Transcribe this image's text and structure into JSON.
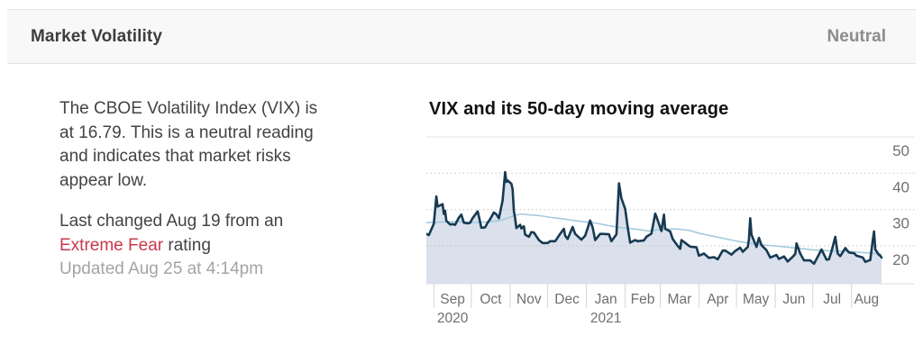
{
  "header": {
    "title": "Market Volatility",
    "status": "Neutral"
  },
  "summary": {
    "paragraph": "The CBOE Volatility Index (VIX) is\nat 16.79. This is a neutral reading\nand indicates that market risks\nappear low.",
    "last_changed_line1": "Last changed Aug 19 from an",
    "rating": "Extreme Fear",
    "rating_suffix": " rating",
    "updated": "Updated Aug 25 at 4:14pm",
    "vix_value": "16.79",
    "rating_color": "#ca384b"
  },
  "chart_data": {
    "type": "line",
    "title": "VIX and its 50-day moving average",
    "x_type": "date",
    "x_range": [
      "2020-08-26",
      "2021-08-25"
    ],
    "ylim": [
      10,
      52
    ],
    "yticks": [
      50,
      40,
      30,
      20
    ],
    "grid": "dotted-horizontal",
    "y_labels_position": "right",
    "x_ticks": [
      "2020-09-01",
      "2020-10-01",
      "2020-11-01",
      "2020-12-01",
      "2021-01-01",
      "2021-02-01",
      "2021-03-01",
      "2021-04-01",
      "2021-05-01",
      "2021-06-01",
      "2021-07-01",
      "2021-08-01"
    ],
    "x_tick_labels": [
      "Sep",
      "Oct",
      "Nov",
      "Dec",
      "Jan",
      "Feb",
      "Mar",
      "Apr",
      "May",
      "Jun",
      "Jul",
      "Aug"
    ],
    "year_labels": [
      {
        "text": "2020",
        "month_index": 0
      },
      {
        "text": "2021",
        "month_index": 4
      }
    ],
    "series": [
      {
        "name": "VIX",
        "style": "area-line",
        "color": "#173a52",
        "fill": "#dae1ec",
        "points": [
          [
            "2020-08-26",
            23.3
          ],
          [
            "2020-08-28",
            23.0
          ],
          [
            "2020-09-01",
            26.1
          ],
          [
            "2020-09-03",
            33.6
          ],
          [
            "2020-09-04",
            30.8
          ],
          [
            "2020-09-08",
            31.5
          ],
          [
            "2020-09-09",
            28.8
          ],
          [
            "2020-09-10",
            29.7
          ],
          [
            "2020-09-11",
            26.9
          ],
          [
            "2020-09-14",
            25.9
          ],
          [
            "2020-09-16",
            26.0
          ],
          [
            "2020-09-18",
            25.8
          ],
          [
            "2020-09-21",
            27.8
          ],
          [
            "2020-09-23",
            28.6
          ],
          [
            "2020-09-25",
            26.4
          ],
          [
            "2020-09-28",
            26.2
          ],
          [
            "2020-09-30",
            26.4
          ],
          [
            "2020-10-02",
            27.6
          ],
          [
            "2020-10-06",
            29.5
          ],
          [
            "2020-10-07",
            28.1
          ],
          [
            "2020-10-09",
            25.0
          ],
          [
            "2020-10-12",
            25.1
          ],
          [
            "2020-10-14",
            26.4
          ],
          [
            "2020-10-16",
            27.4
          ],
          [
            "2020-10-19",
            29.2
          ],
          [
            "2020-10-21",
            28.7
          ],
          [
            "2020-10-23",
            27.6
          ],
          [
            "2020-10-26",
            32.5
          ],
          [
            "2020-10-28",
            40.3
          ],
          [
            "2020-10-29",
            37.6
          ],
          [
            "2020-10-30",
            38.0
          ],
          [
            "2020-11-02",
            37.1
          ],
          [
            "2020-11-03",
            35.6
          ],
          [
            "2020-11-04",
            29.6
          ],
          [
            "2020-11-05",
            27.6
          ],
          [
            "2020-11-06",
            24.9
          ],
          [
            "2020-11-09",
            25.8
          ],
          [
            "2020-11-10",
            24.8
          ],
          [
            "2020-11-12",
            25.4
          ],
          [
            "2020-11-13",
            23.1
          ],
          [
            "2020-11-16",
            22.5
          ],
          [
            "2020-11-18",
            23.8
          ],
          [
            "2020-11-20",
            23.7
          ],
          [
            "2020-11-24",
            21.6
          ],
          [
            "2020-11-27",
            20.8
          ],
          [
            "2020-12-01",
            20.8
          ],
          [
            "2020-12-03",
            21.3
          ],
          [
            "2020-12-07",
            21.3
          ],
          [
            "2020-12-09",
            22.3
          ],
          [
            "2020-12-11",
            23.3
          ],
          [
            "2020-12-14",
            24.7
          ],
          [
            "2020-12-15",
            22.8
          ],
          [
            "2020-12-17",
            21.9
          ],
          [
            "2020-12-21",
            25.2
          ],
          [
            "2020-12-23",
            23.3
          ],
          [
            "2020-12-28",
            21.7
          ],
          [
            "2020-12-31",
            22.8
          ],
          [
            "2021-01-04",
            27.0
          ],
          [
            "2021-01-06",
            25.1
          ],
          [
            "2021-01-08",
            21.6
          ],
          [
            "2021-01-12",
            23.3
          ],
          [
            "2021-01-14",
            23.3
          ],
          [
            "2021-01-19",
            23.2
          ],
          [
            "2021-01-21",
            21.3
          ],
          [
            "2021-01-25",
            23.2
          ],
          [
            "2021-01-27",
            37.2
          ],
          [
            "2021-01-29",
            33.1
          ],
          [
            "2021-02-01",
            30.2
          ],
          [
            "2021-02-03",
            25.1
          ],
          [
            "2021-02-05",
            20.9
          ],
          [
            "2021-02-09",
            21.6
          ],
          [
            "2021-02-11",
            21.3
          ],
          [
            "2021-02-16",
            21.5
          ],
          [
            "2021-02-18",
            22.5
          ],
          [
            "2021-02-22",
            23.4
          ],
          [
            "2021-02-25",
            28.9
          ],
          [
            "2021-02-26",
            28.0
          ],
          [
            "2021-03-02",
            24.1
          ],
          [
            "2021-03-04",
            28.6
          ],
          [
            "2021-03-05",
            24.7
          ],
          [
            "2021-03-09",
            24.0
          ],
          [
            "2021-03-11",
            21.9
          ],
          [
            "2021-03-15",
            20.0
          ],
          [
            "2021-03-17",
            19.2
          ],
          [
            "2021-03-18",
            21.6
          ],
          [
            "2021-03-23",
            20.3
          ],
          [
            "2021-03-25",
            19.8
          ],
          [
            "2021-03-30",
            19.6
          ],
          [
            "2021-04-01",
            17.3
          ],
          [
            "2021-04-05",
            17.9
          ],
          [
            "2021-04-09",
            16.7
          ],
          [
            "2021-04-13",
            16.9
          ],
          [
            "2021-04-16",
            16.3
          ],
          [
            "2021-04-20",
            18.7
          ],
          [
            "2021-04-22",
            18.7
          ],
          [
            "2021-04-27",
            17.6
          ],
          [
            "2021-04-30",
            18.6
          ],
          [
            "2021-05-04",
            19.5
          ],
          [
            "2021-05-06",
            18.4
          ],
          [
            "2021-05-10",
            19.7
          ],
          [
            "2021-05-11",
            21.8
          ],
          [
            "2021-05-12",
            27.6
          ],
          [
            "2021-05-13",
            23.1
          ],
          [
            "2021-05-17",
            19.7
          ],
          [
            "2021-05-19",
            22.2
          ],
          [
            "2021-05-21",
            20.2
          ],
          [
            "2021-05-25",
            18.8
          ],
          [
            "2021-05-28",
            16.8
          ],
          [
            "2021-06-02",
            17.5
          ],
          [
            "2021-06-04",
            16.4
          ],
          [
            "2021-06-08",
            17.1
          ],
          [
            "2021-06-11",
            15.7
          ],
          [
            "2021-06-15",
            17.0
          ],
          [
            "2021-06-17",
            17.8
          ],
          [
            "2021-06-18",
            20.7
          ],
          [
            "2021-06-21",
            17.9
          ],
          [
            "2021-06-24",
            16.0
          ],
          [
            "2021-06-29",
            16.0
          ],
          [
            "2021-07-02",
            15.1
          ],
          [
            "2021-07-08",
            19.0
          ],
          [
            "2021-07-12",
            16.2
          ],
          [
            "2021-07-14",
            16.3
          ],
          [
            "2021-07-16",
            18.5
          ],
          [
            "2021-07-19",
            22.5
          ],
          [
            "2021-07-21",
            17.9
          ],
          [
            "2021-07-23",
            17.2
          ],
          [
            "2021-07-27",
            19.4
          ],
          [
            "2021-07-30",
            18.2
          ],
          [
            "2021-08-03",
            18.0
          ],
          [
            "2021-08-05",
            17.3
          ],
          [
            "2021-08-10",
            16.8
          ],
          [
            "2021-08-12",
            15.6
          ],
          [
            "2021-08-16",
            16.1
          ],
          [
            "2021-08-18",
            21.6
          ],
          [
            "2021-08-19",
            24.0
          ],
          [
            "2021-08-20",
            19.0
          ],
          [
            "2021-08-23",
            17.5
          ],
          [
            "2021-08-24",
            17.3
          ],
          [
            "2021-08-25",
            16.8
          ]
        ]
      },
      {
        "name": "50-day moving average",
        "style": "line",
        "color": "#a5cade",
        "points": [
          [
            "2020-08-26",
            26.4
          ],
          [
            "2020-09-08",
            26.6
          ],
          [
            "2020-09-22",
            26.7
          ],
          [
            "2020-10-02",
            26.4
          ],
          [
            "2020-10-14",
            26.6
          ],
          [
            "2020-10-24",
            27.0
          ],
          [
            "2020-10-31",
            27.8
          ],
          [
            "2020-11-05",
            28.4
          ],
          [
            "2020-11-10",
            28.8
          ],
          [
            "2020-11-18",
            28.5
          ],
          [
            "2020-11-25",
            28.3
          ],
          [
            "2020-12-04",
            27.8
          ],
          [
            "2020-12-10",
            27.6
          ],
          [
            "2020-12-18",
            27.2
          ],
          [
            "2020-12-24",
            26.9
          ],
          [
            "2021-01-01",
            26.6
          ],
          [
            "2021-01-08",
            26.3
          ],
          [
            "2021-01-20",
            25.5
          ],
          [
            "2021-01-29",
            25.0
          ],
          [
            "2021-02-10",
            24.6
          ],
          [
            "2021-02-20",
            24.1
          ],
          [
            "2021-03-03",
            24.6
          ],
          [
            "2021-03-12",
            24.7
          ],
          [
            "2021-03-24",
            24.3
          ],
          [
            "2021-04-02",
            23.4
          ],
          [
            "2021-04-16",
            22.4
          ],
          [
            "2021-04-30",
            21.4
          ],
          [
            "2021-05-12",
            20.7
          ],
          [
            "2021-05-24",
            20.2
          ],
          [
            "2021-06-04",
            19.9
          ],
          [
            "2021-06-18",
            19.4
          ],
          [
            "2021-07-01",
            18.9
          ],
          [
            "2021-07-16",
            18.6
          ],
          [
            "2021-08-02",
            18.4
          ],
          [
            "2021-08-13",
            18.1
          ],
          [
            "2021-08-25",
            17.8
          ]
        ]
      }
    ],
    "colors": {
      "grid_solid": "#e3e3e3",
      "grid_dotted": "#c4c4c4",
      "axis": "#dedede",
      "tick": "#d6d6d6",
      "axis_label": "#6f6f6f"
    }
  }
}
